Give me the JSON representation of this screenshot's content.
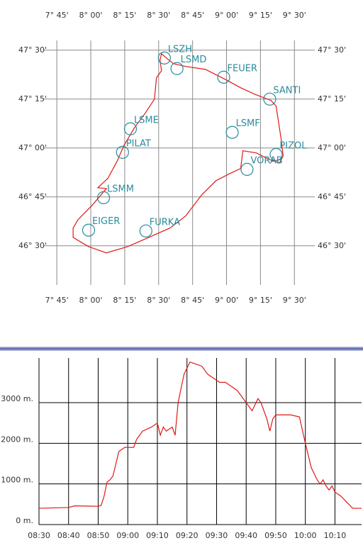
{
  "chart_data": [
    {
      "type": "map",
      "xlim": [
        7.65,
        9.65
      ],
      "ylim": [
        46.3,
        47.55
      ],
      "grid": true,
      "xticks": [
        {
          "value": 7.75,
          "label": "7° 45'"
        },
        {
          "value": 8,
          "label": "8° 00'"
        },
        {
          "value": 8.25,
          "label": "8° 15'"
        },
        {
          "value": 8.5,
          "label": "8° 30'"
        },
        {
          "value": 8.75,
          "label": "8° 45'"
        },
        {
          "value": 9,
          "label": "9° 00'"
        },
        {
          "value": 9.25,
          "label": "9° 15'"
        },
        {
          "value": 9.5,
          "label": "9° 30'"
        }
      ],
      "yticks": [
        {
          "value": 46.5,
          "label": "46° 30'"
        },
        {
          "value": 46.75,
          "label": "46° 45'"
        },
        {
          "value": 47,
          "label": "47° 00'"
        },
        {
          "value": 47.25,
          "label": "47° 15'"
        },
        {
          "value": 47.5,
          "label": "47° 30'"
        }
      ],
      "waypoints": {
        "color": "#2a8c9c",
        "names": [
          "LSZH",
          "LSMD",
          "FEUER",
          "SANTI",
          "LSME",
          "LSMF",
          "PILAT",
          "PIZOL",
          "VORAB",
          "LSMM",
          "EIGER",
          "FURKA"
        ],
        "x": [
          8.542,
          8.635,
          8.979,
          9.318,
          8.292,
          9.042,
          8.234,
          9.365,
          9.151,
          8.094,
          7.984,
          8.406
        ],
        "y": [
          47.46,
          47.406,
          47.362,
          47.25,
          47.098,
          47.08,
          46.978,
          46.967,
          46.891,
          46.746,
          46.58,
          46.576
        ]
      },
      "track": {
        "color": "#e01818",
        "x": [
          8.557,
          8.521,
          8.51,
          8.521,
          8.484,
          8.469,
          8.401,
          8.323,
          8.245,
          8.193,
          8.125,
          8.052,
          8.115,
          8.01,
          7.906,
          7.87,
          7.87,
          7.984,
          8.115,
          8.271,
          8.427,
          8.583,
          8.698,
          8.818,
          8.922,
          9.026,
          9.104,
          9.12,
          9.219,
          9.313,
          9.391,
          9.417,
          9.401,
          9.365,
          9.328,
          9.208,
          9.104,
          8.99,
          8.844,
          8.698,
          8.609,
          8.557
        ],
        "y": [
          47.46,
          47.482,
          47.449,
          47.395,
          47.359,
          47.25,
          47.178,
          47.105,
          47.014,
          46.931,
          46.844,
          46.797,
          46.793,
          46.707,
          46.634,
          46.591,
          46.543,
          46.496,
          46.464,
          46.496,
          46.543,
          46.591,
          46.652,
          46.761,
          46.833,
          46.87,
          46.895,
          46.986,
          46.975,
          46.942,
          46.924,
          46.96,
          47.051,
          47.214,
          47.243,
          47.275,
          47.308,
          47.351,
          47.402,
          47.417,
          47.431,
          47.46
        ]
      }
    },
    {
      "type": "line",
      "xlim": [
        "08:30",
        "10:19"
      ],
      "ylim": [
        0,
        4100
      ],
      "grid": true,
      "color": "#e01818",
      "xticks": [
        "08:30",
        "08:40",
        "08:50",
        "09:00",
        "09:10",
        "09:20",
        "09:30",
        "09:40",
        "09:50",
        "10:00",
        "10:10"
      ],
      "yticks": [
        {
          "value": 0,
          "label": "0 m."
        },
        {
          "value": 1000,
          "label": "1000 m."
        },
        {
          "value": 2000,
          "label": "2000 m."
        },
        {
          "value": 3000,
          "label": "3000 m."
        }
      ],
      "x": [
        "08:30",
        "08:40",
        "08:42",
        "08:50",
        "08:51",
        "08:52",
        "08:53",
        "08:54",
        "08:55",
        "08:56",
        "08:57",
        "08:59",
        "09:02",
        "09:03",
        "09:05",
        "09:08",
        "09:10",
        "09:11",
        "09:12",
        "09:13",
        "09:15",
        "09:16",
        "09:17",
        "09:19",
        "09:21",
        "09:23",
        "09:25",
        "09:27",
        "09:29",
        "09:31",
        "09:33",
        "09:35",
        "09:37",
        "09:40",
        "09:42",
        "09:44",
        "09:45",
        "09:47",
        "09:48",
        "09:49",
        "09:50",
        "09:55",
        "09:58",
        "10:00",
        "10:02",
        "10:04",
        "10:05",
        "10:06",
        "10:07",
        "10:08",
        "10:09",
        "10:10",
        "10:12",
        "10:14",
        "10:16",
        "10:19"
      ],
      "values": [
        400,
        420,
        460,
        450,
        470,
        700,
        1050,
        1100,
        1200,
        1500,
        1800,
        1900,
        1900,
        2100,
        2300,
        2400,
        2500,
        2200,
        2400,
        2300,
        2400,
        2200,
        3000,
        3700,
        4000,
        3950,
        3900,
        3700,
        3600,
        3500,
        3500,
        3400,
        3300,
        3000,
        2800,
        3100,
        3000,
        2600,
        2300,
        2600,
        2700,
        2700,
        2650,
        2000,
        1400,
        1100,
        1000,
        1100,
        950,
        850,
        950,
        800,
        700,
        550,
        400,
        400
      ]
    }
  ]
}
